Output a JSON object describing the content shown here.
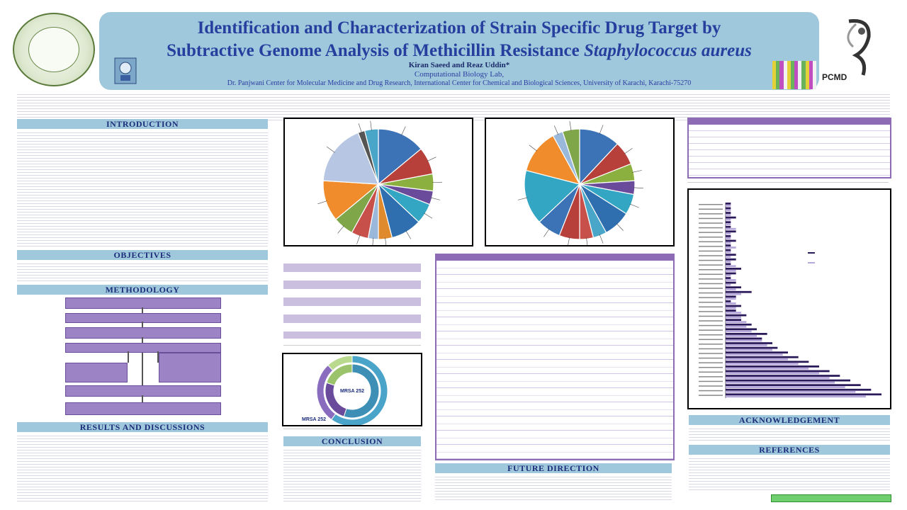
{
  "header": {
    "title_line1": "Identification and Characterization of Strain Specific Drug Target by",
    "title_line2": "Subtractive Genome Analysis of Methicillin Resistance",
    "title_italic": "Staphylococcus aureus",
    "authors": "Kiran Saeed and Reaz Uddin*",
    "lab": "Computational Biology Lab,",
    "institution": "Dr. Panjwani Center for Molecular Medicine and Drug Research, International Center for Chemical and Biological Sciences, University of Karachi, Karachi-75270",
    "right_logo_text": "PCMD"
  },
  "sections": {
    "introduction": "INTRODUCTION",
    "objectives": "OBJECTIVES",
    "methodology": "METHODOLOGY",
    "results": "RESULTS AND DISCUSSIONS",
    "conclusion": "CONCLUSION",
    "future": "FUTURE DIRECTION",
    "acknowledgement": "ACKNOWLEDGEMENT",
    "references": "REFERENCES"
  },
  "donut_labels": {
    "inner": "MRSA 252",
    "outer": "MRSA 252"
  },
  "colors": {
    "header_bg": "#9fc8dc",
    "title": "#263f9e",
    "table_border": "#8e6bb5",
    "flow_box": "#9b83c6"
  },
  "chart_data": [
    {
      "type": "pie",
      "values": [
        14,
        8,
        5,
        4,
        6,
        9,
        4,
        3,
        5,
        6,
        12,
        18,
        2,
        4
      ],
      "colors": [
        "#3b73b6",
        "#b8403a",
        "#8cb040",
        "#6a4a9a",
        "#33a6c4",
        "#2f6fb0",
        "#e08a2e",
        "#9ab8da",
        "#c7504b",
        "#7fa74a",
        "#f08c2b",
        "#b7c7e3",
        "#555555",
        "#4aa6c8"
      ]
    },
    {
      "type": "pie",
      "values": [
        12,
        7,
        5,
        4,
        6,
        8,
        4,
        4,
        6,
        7,
        16,
        13,
        3,
        5
      ],
      "colors": [
        "#3b73b6",
        "#b8403a",
        "#8cb040",
        "#6a4a9a",
        "#33a6c4",
        "#2f6fb0",
        "#4aa6c8",
        "#c7504b",
        "#b8403a",
        "#3b73b6",
        "#33a6c4",
        "#f08c2b",
        "#9ab8da",
        "#7fa74a"
      ]
    },
    {
      "type": "bar",
      "orientation": "horizontal",
      "series": [
        {
          "values": [
            1,
            1,
            1,
            2,
            1,
            1,
            2,
            1,
            2,
            1,
            1,
            2,
            2,
            1,
            3,
            2,
            1,
            2,
            3,
            5,
            2,
            1,
            3,
            2,
            4,
            3,
            5,
            6,
            8,
            7,
            9,
            10,
            12,
            14,
            16,
            18,
            20,
            22,
            24,
            26,
            28,
            30
          ]
        },
        {
          "values": [
            1,
            1,
            1,
            1,
            1,
            2,
            1,
            1,
            1,
            2,
            1,
            1,
            1,
            2,
            2,
            1,
            2,
            1,
            2,
            3,
            2,
            2,
            2,
            3,
            3,
            4,
            4,
            5,
            6,
            7,
            8,
            9,
            11,
            12,
            14,
            16,
            18,
            20,
            21,
            23,
            25,
            27
          ]
        }
      ],
      "colors": [
        "#2b1a5a",
        "#b7a8dc"
      ]
    },
    {
      "type": "pie",
      "subtype": "donut",
      "series": [
        {
          "values": [
            55,
            25,
            20
          ],
          "colors": [
            "#3d8fb5",
            "#6a4a9a",
            "#9bc36b"
          ]
        },
        {
          "values": [
            60,
            28,
            12
          ],
          "colors": [
            "#4aa3c9",
            "#8a6cbf",
            "#b9d98e"
          ]
        }
      ]
    }
  ]
}
